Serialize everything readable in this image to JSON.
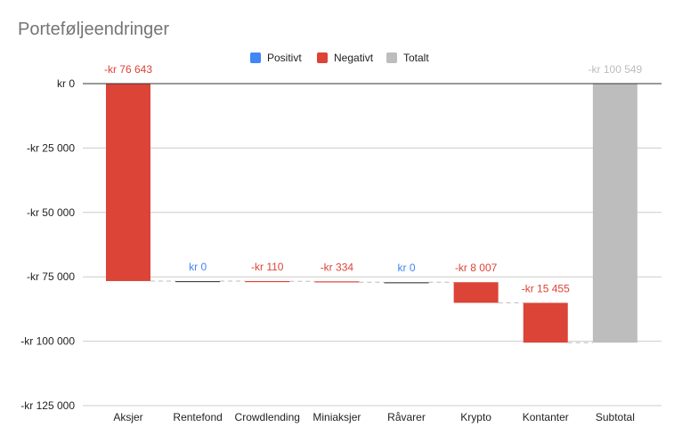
{
  "chart_data": {
    "type": "waterfall",
    "title": "Porteføljeendringer",
    "legend": [
      {
        "label": "Positivt",
        "color": "#4285f4"
      },
      {
        "label": "Negativt",
        "color": "#db4437"
      },
      {
        "label": "Totalt",
        "color": "#bdbdbd"
      }
    ],
    "legend_position": "top",
    "categories": [
      "Aksjer",
      "Rentefond",
      "Crowdlending",
      "Miniaksjer",
      "Råvarer",
      "Krypto",
      "Kontanter",
      "Subtotal"
    ],
    "values": [
      -76643,
      0,
      -110,
      -334,
      0,
      -8007,
      -15455,
      -100549
    ],
    "kinds": [
      "negative",
      "positive",
      "negative",
      "negative",
      "positive",
      "negative",
      "negative",
      "total"
    ],
    "data_labels": [
      "-kr  76 643",
      "kr  0",
      "-kr  110",
      "-kr  334",
      "kr  0",
      "-kr  8 007",
      "-kr  15 455",
      "-kr  100 549"
    ],
    "y_ticks": [
      0,
      -25000,
      -50000,
      -75000,
      -100000,
      -125000
    ],
    "y_tick_labels": [
      "kr  0",
      "-kr  25 000",
      "-kr  50 000",
      "-kr  75 000",
      "-kr  100 000",
      "-kr  125 000"
    ],
    "ylim": [
      -125000,
      0
    ],
    "grid": true,
    "colors": {
      "positive": "#4285f4",
      "negative": "#db4437",
      "total": "#bdbdbd",
      "zero_bar": "#444444",
      "grid": "#cccccc",
      "connector": "#bbbbbb",
      "total_label": "#bdbdbd"
    }
  }
}
